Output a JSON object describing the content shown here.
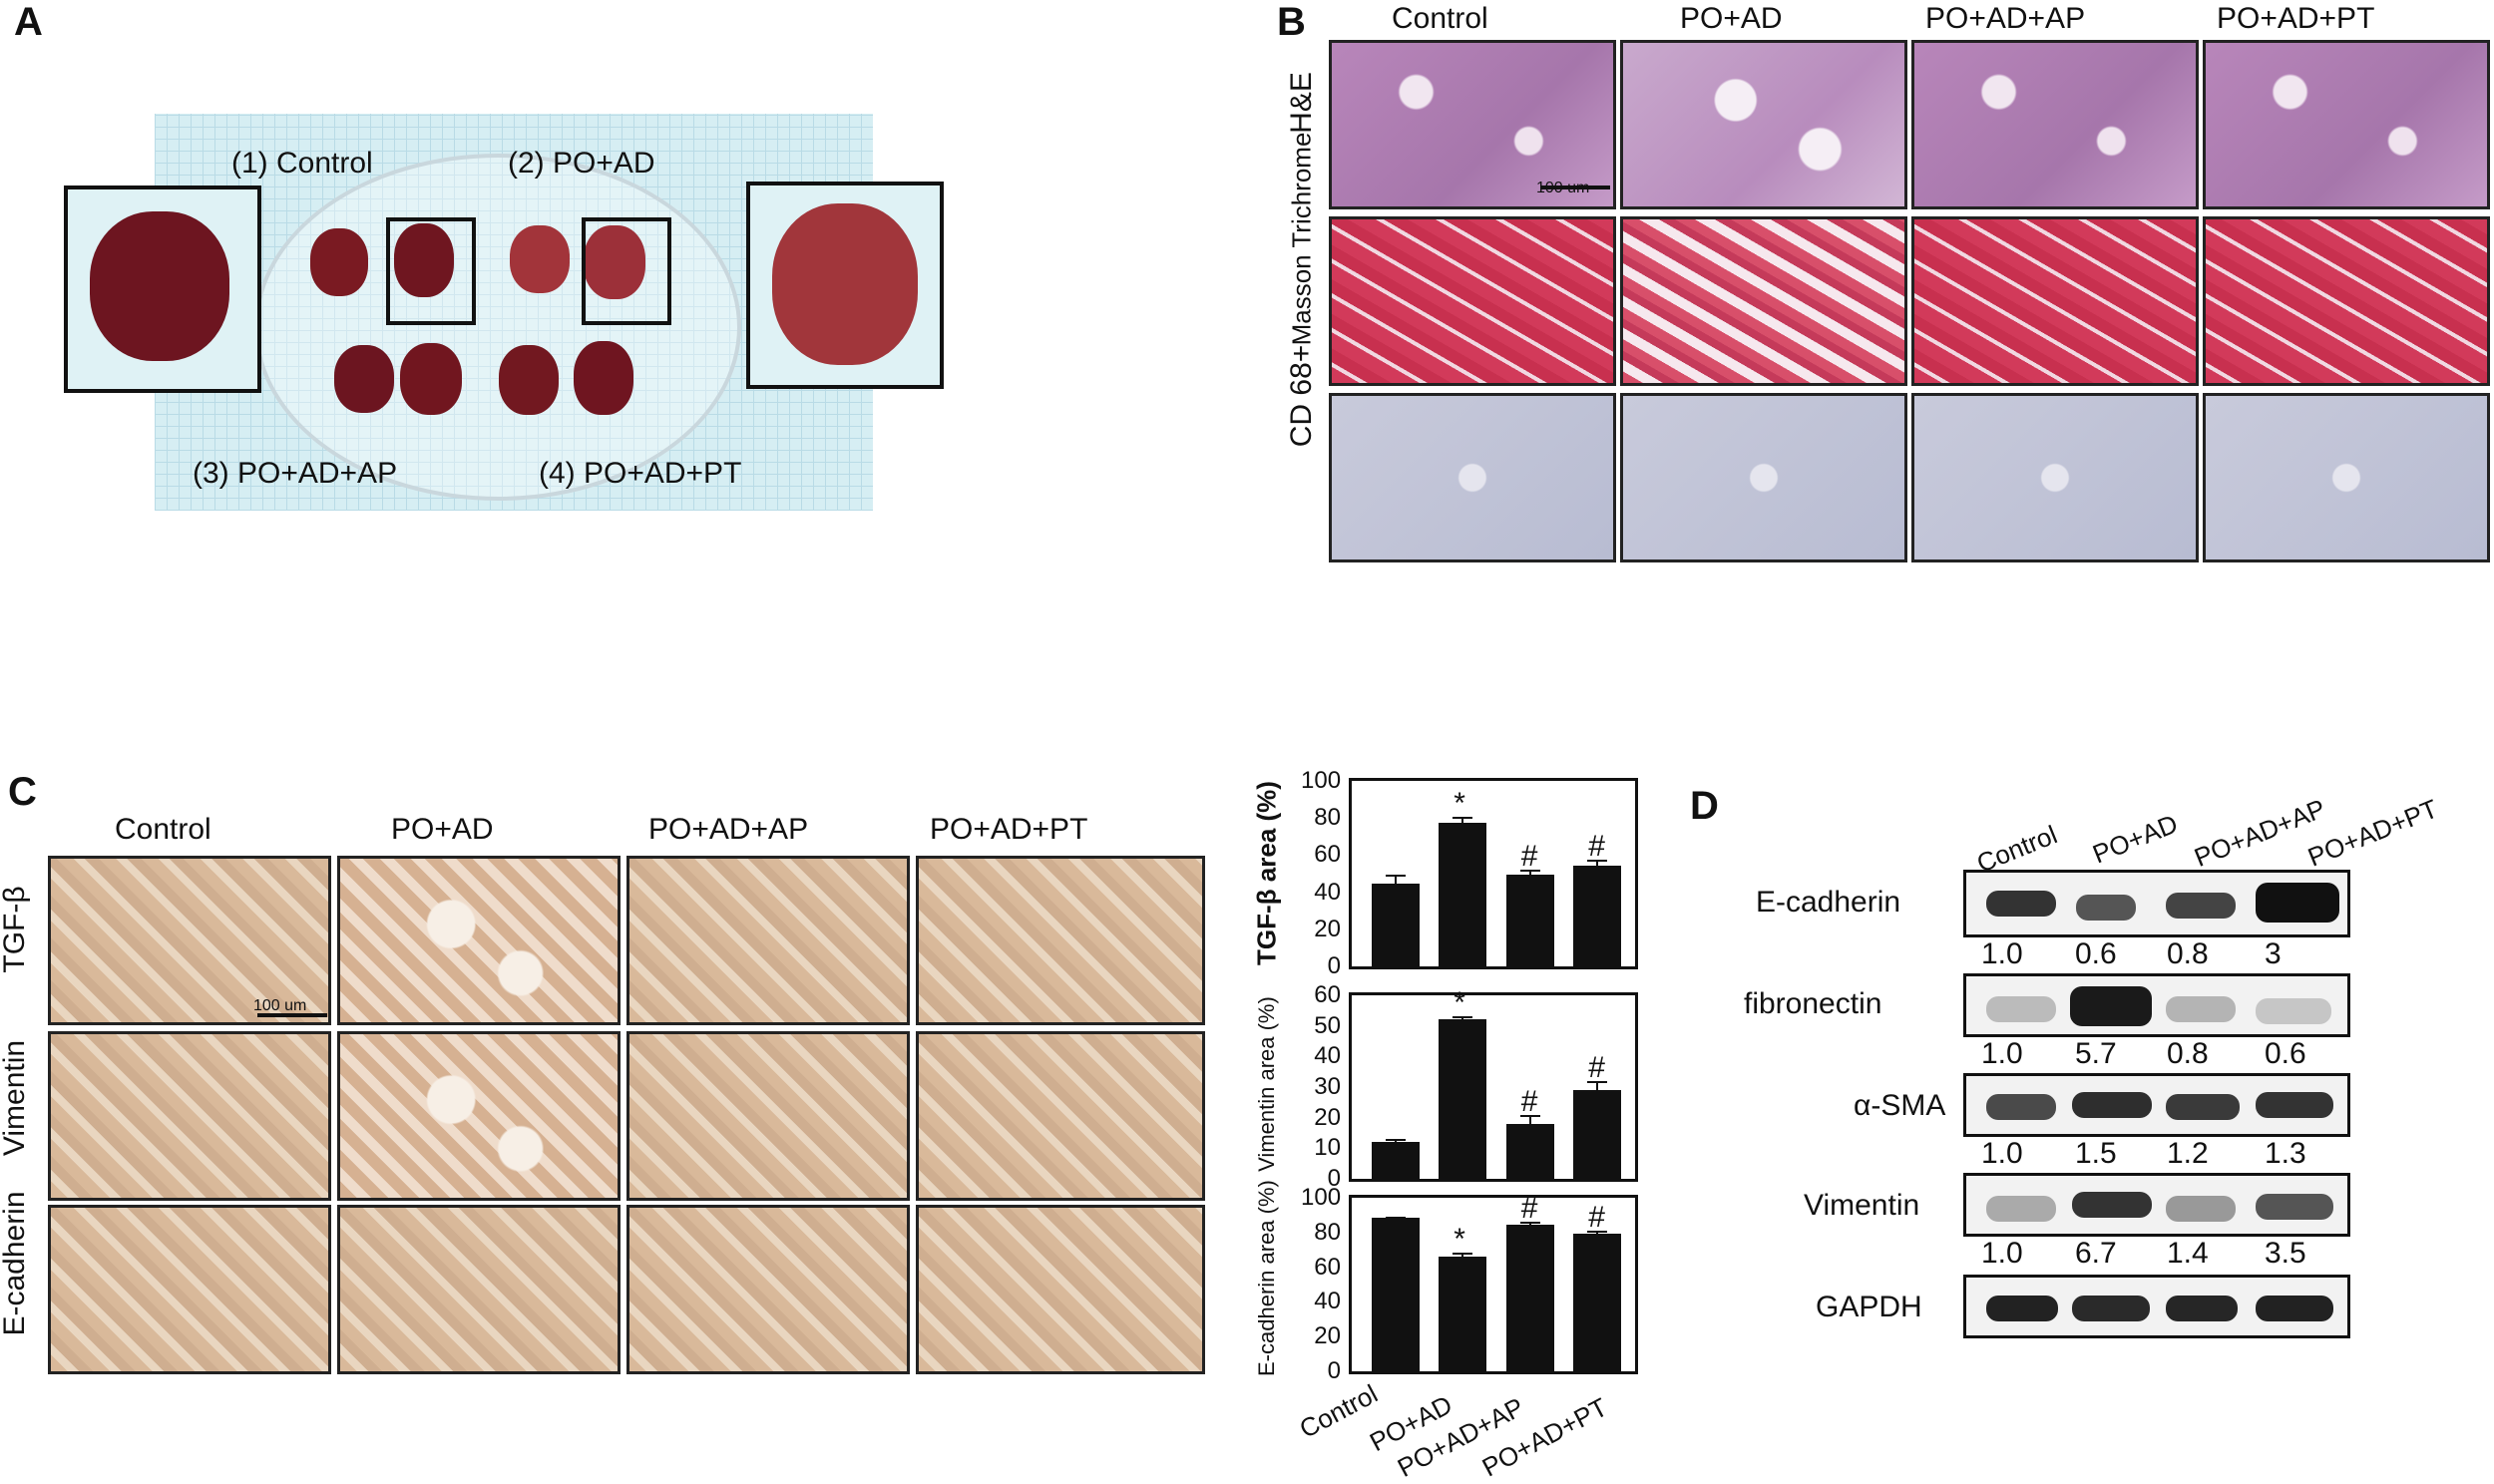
{
  "panels": {
    "A": "A",
    "B": "B",
    "C": "C",
    "D": "D"
  },
  "panelA": {
    "labels": [
      "(1) Control",
      "(2) PO+AD",
      "(3) PO+AD+AP",
      "(4) PO+AD+PT"
    ]
  },
  "panelB": {
    "columns": [
      "Control",
      "PO+AD",
      "PO+AD+AP",
      "PO+AD+PT"
    ],
    "rows": [
      "H&E",
      "Masson Trichrome",
      "CD 68+"
    ],
    "scale": "100 um"
  },
  "panelC": {
    "columns": [
      "Control",
      "PO+AD",
      "PO+AD+AP",
      "PO+AD+PT"
    ],
    "rows": [
      "TGF-β",
      "Vimentin",
      "E-cadherin"
    ],
    "scale": "100 um"
  },
  "chart_data": [
    {
      "type": "bar",
      "ylabel": "TGF-β area (%)",
      "categories": [
        "Control",
        "PO+AD",
        "PO+AD+AP",
        "PO+AD+PT"
      ],
      "values": [
        46,
        79,
        51,
        56
      ],
      "errors": [
        5,
        3,
        3,
        3
      ],
      "annotations": [
        "",
        "*",
        "#",
        "#"
      ],
      "ylim": [
        0,
        100
      ],
      "yticks": [
        0,
        20,
        40,
        60,
        80,
        100
      ]
    },
    {
      "type": "bar",
      "ylabel": "Vimentin area (%)",
      "categories": [
        "Control",
        "PO+AD",
        "PO+AD+AP",
        "PO+AD+PT"
      ],
      "values": [
        13,
        53,
        19,
        30
      ],
      "errors": [
        1,
        1,
        3,
        3
      ],
      "annotations": [
        "",
        "*",
        "#",
        "#"
      ],
      "ylim": [
        0,
        60
      ],
      "yticks": [
        0,
        10,
        20,
        30,
        40,
        50,
        60
      ]
    },
    {
      "type": "bar",
      "ylabel": "E-cadherin area (%)",
      "categories": [
        "Control",
        "PO+AD",
        "PO+AD+AP",
        "PO+AD+PT"
      ],
      "values": [
        90,
        68,
        86,
        81
      ],
      "errors": [
        1,
        2,
        2,
        2
      ],
      "annotations": [
        "",
        "*",
        "#",
        "#"
      ],
      "ylim": [
        0,
        100
      ],
      "yticks": [
        0,
        20,
        40,
        60,
        80,
        100
      ]
    }
  ],
  "panelD": {
    "columns": [
      "Control",
      "PO+AD",
      "PO+AD+AP",
      "PO+AD+PT"
    ],
    "blots": [
      {
        "name": "E-cadherin",
        "values": [
          "1.0",
          "0.6",
          "0.8",
          "3"
        ]
      },
      {
        "name": "fibronectin",
        "values": [
          "1.0",
          "5.7",
          "0.8",
          "0.6"
        ]
      },
      {
        "name": "α-SMA",
        "values": [
          "1.0",
          "1.5",
          "1.2",
          "1.3"
        ]
      },
      {
        "name": "Vimentin",
        "values": [
          "1.0",
          "6.7",
          "1.4",
          "3.5"
        ]
      },
      {
        "name": "GAPDH",
        "values": []
      }
    ]
  }
}
